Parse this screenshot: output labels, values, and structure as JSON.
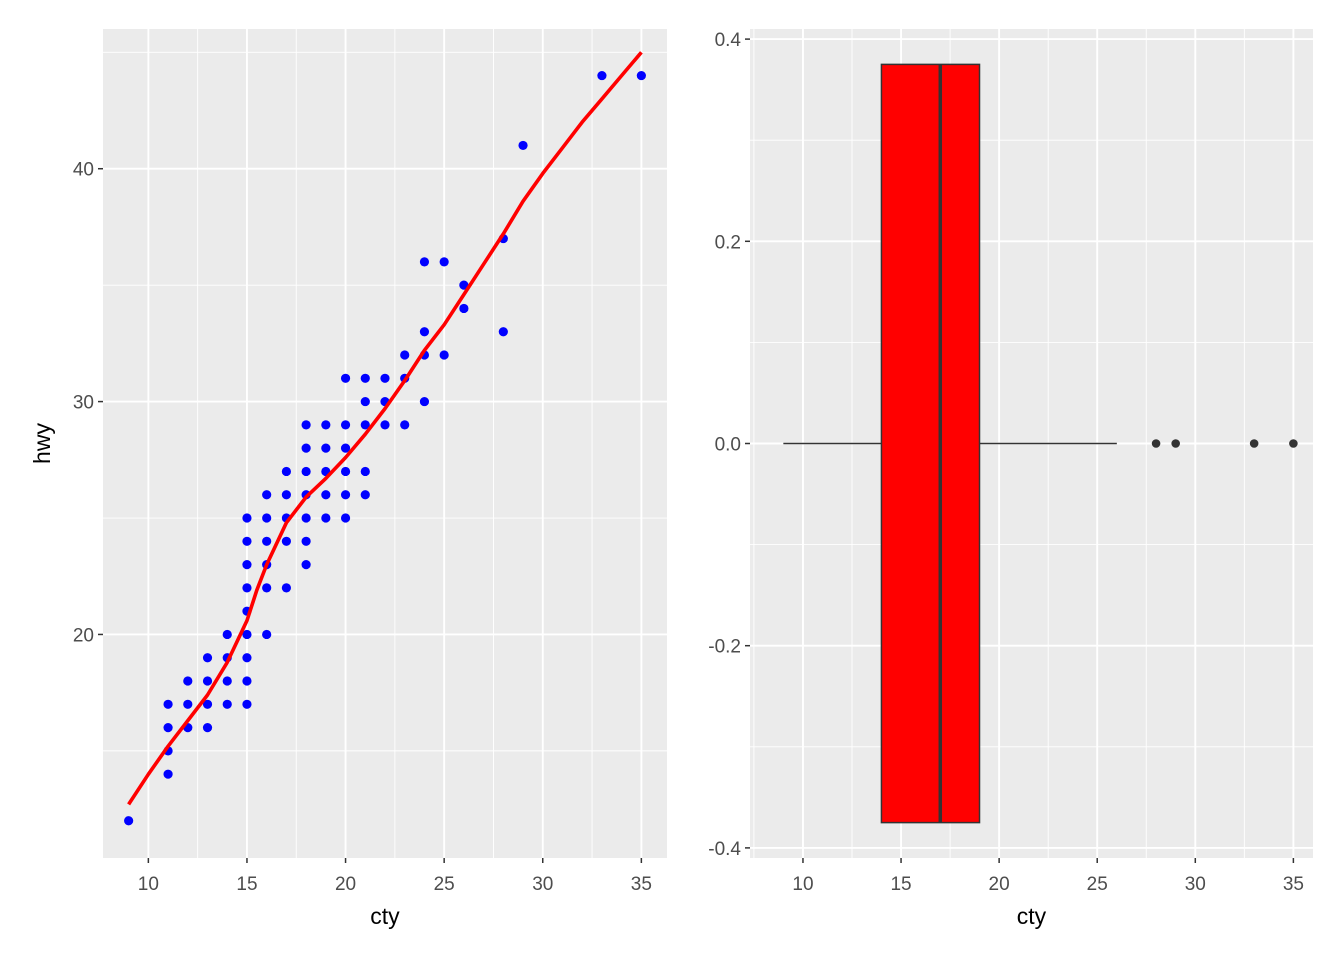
{
  "chart_data": [
    {
      "type": "scatter",
      "title": "",
      "xlabel": "cty",
      "ylabel": "hwy",
      "xlim": [
        7.7,
        36.3
      ],
      "ylim": [
        10.4,
        46.0
      ],
      "x_ticks": [
        10,
        15,
        20,
        25,
        30,
        35
      ],
      "y_ticks": [
        20,
        30,
        40
      ],
      "grid": true,
      "point_color": "#0000ff",
      "points": [
        [
          9,
          12
        ],
        [
          11,
          14
        ],
        [
          11,
          15
        ],
        [
          11,
          16
        ],
        [
          12,
          16
        ],
        [
          13,
          16
        ],
        [
          11,
          17
        ],
        [
          12,
          17
        ],
        [
          13,
          17
        ],
        [
          14,
          17
        ],
        [
          15,
          17
        ],
        [
          12,
          18
        ],
        [
          13,
          18
        ],
        [
          14,
          18
        ],
        [
          15,
          18
        ],
        [
          13,
          19
        ],
        [
          14,
          19
        ],
        [
          15,
          19
        ],
        [
          14,
          20
        ],
        [
          15,
          20
        ],
        [
          16,
          20
        ],
        [
          15,
          21
        ],
        [
          15,
          22
        ],
        [
          16,
          22
        ],
        [
          17,
          22
        ],
        [
          15,
          23
        ],
        [
          16,
          23
        ],
        [
          18,
          23
        ],
        [
          15,
          24
        ],
        [
          16,
          24
        ],
        [
          17,
          24
        ],
        [
          18,
          24
        ],
        [
          15,
          25
        ],
        [
          16,
          25
        ],
        [
          17,
          25
        ],
        [
          18,
          25
        ],
        [
          19,
          25
        ],
        [
          20,
          25
        ],
        [
          16,
          26
        ],
        [
          17,
          26
        ],
        [
          18,
          26
        ],
        [
          19,
          26
        ],
        [
          20,
          26
        ],
        [
          21,
          26
        ],
        [
          17,
          27
        ],
        [
          18,
          27
        ],
        [
          19,
          27
        ],
        [
          20,
          27
        ],
        [
          21,
          27
        ],
        [
          18,
          28
        ],
        [
          19,
          28
        ],
        [
          20,
          28
        ],
        [
          18,
          29
        ],
        [
          19,
          29
        ],
        [
          20,
          29
        ],
        [
          21,
          29
        ],
        [
          22,
          29
        ],
        [
          23,
          29
        ],
        [
          21,
          30
        ],
        [
          22,
          30
        ],
        [
          24,
          30
        ],
        [
          20,
          31
        ],
        [
          21,
          31
        ],
        [
          22,
          31
        ],
        [
          23,
          31
        ],
        [
          23,
          32
        ],
        [
          24,
          32
        ],
        [
          25,
          32
        ],
        [
          24,
          33
        ],
        [
          28,
          33
        ],
        [
          26,
          34
        ],
        [
          26,
          35
        ],
        [
          24,
          36
        ],
        [
          25,
          36
        ],
        [
          28,
          37
        ],
        [
          29,
          41
        ],
        [
          33,
          44
        ],
        [
          35,
          44
        ]
      ],
      "smooth_line": {
        "color": "#ff0000",
        "points": [
          [
            9,
            12.7
          ],
          [
            10,
            14.0
          ],
          [
            11,
            15.2
          ],
          [
            12,
            16.3
          ],
          [
            13,
            17.4
          ],
          [
            14,
            18.8
          ],
          [
            15,
            20.6
          ],
          [
            15.5,
            21.9
          ],
          [
            16,
            23.0
          ],
          [
            17,
            24.8
          ],
          [
            18,
            25.9
          ],
          [
            19,
            26.7
          ],
          [
            20,
            27.6
          ],
          [
            21,
            28.6
          ],
          [
            22,
            29.7
          ],
          [
            23,
            30.9
          ],
          [
            24,
            32.2
          ],
          [
            25,
            33.3
          ],
          [
            26,
            34.6
          ],
          [
            27,
            35.9
          ],
          [
            28,
            37.2
          ],
          [
            29,
            38.6
          ],
          [
            30,
            39.8
          ],
          [
            31,
            40.9
          ],
          [
            32,
            42.0
          ],
          [
            33,
            43.0
          ],
          [
            34,
            44.0
          ],
          [
            35,
            45.0
          ]
        ]
      }
    },
    {
      "type": "boxplot",
      "title": "",
      "xlabel": "cty",
      "ylabel": "",
      "xlim": [
        7.3,
        36.0
      ],
      "ylim": [
        -0.41,
        0.41
      ],
      "x_ticks": [
        10,
        15,
        20,
        25,
        30,
        35
      ],
      "y_ticks": [
        -0.4,
        -0.2,
        0.0,
        0.2,
        0.4
      ],
      "y_tick_labels": [
        "-0.4",
        "-0.2",
        "0.0",
        "0.2",
        "0.4"
      ],
      "grid": true,
      "fill": "#ff0000",
      "outline": "#333333",
      "box": {
        "lower_whisker": 9,
        "q1": 14,
        "median": 17,
        "q3": 19,
        "upper_whisker": 26,
        "ymin": -0.375,
        "ymax": 0.375
      },
      "outliers": [
        28,
        29,
        33,
        35
      ]
    }
  ]
}
